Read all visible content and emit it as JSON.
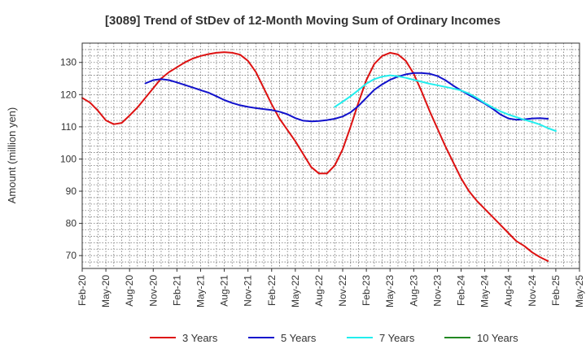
{
  "chart_data": {
    "type": "line",
    "title": "[3089]  Trend of StDev of 12-Month Moving Sum of Ordinary Incomes",
    "xlabel": "",
    "ylabel": "Amount (million yen)",
    "ylim": [
      66,
      136
    ],
    "yticks": [
      70,
      80,
      90,
      100,
      110,
      120,
      130
    ],
    "x_range": [
      0,
      60
    ],
    "x_ticks": [
      {
        "i": 0,
        "label": "Feb-20"
      },
      {
        "i": 3,
        "label": "May-20"
      },
      {
        "i": 6,
        "label": "Aug-20"
      },
      {
        "i": 9,
        "label": "Nov-20"
      },
      {
        "i": 12,
        "label": "Feb-21"
      },
      {
        "i": 15,
        "label": "May-21"
      },
      {
        "i": 18,
        "label": "Aug-21"
      },
      {
        "i": 21,
        "label": "Nov-21"
      },
      {
        "i": 24,
        "label": "Feb-22"
      },
      {
        "i": 27,
        "label": "May-22"
      },
      {
        "i": 30,
        "label": "Aug-22"
      },
      {
        "i": 33,
        "label": "Nov-22"
      },
      {
        "i": 36,
        "label": "Feb-23"
      },
      {
        "i": 39,
        "label": "May-23"
      },
      {
        "i": 42,
        "label": "Aug-23"
      },
      {
        "i": 45,
        "label": "Nov-23"
      },
      {
        "i": 48,
        "label": "Feb-24"
      },
      {
        "i": 51,
        "label": "May-24"
      },
      {
        "i": 54,
        "label": "Aug-24"
      },
      {
        "i": 57,
        "label": "Nov-24"
      },
      {
        "i": 60,
        "label": "Feb-25"
      },
      {
        "i": 63,
        "label": "May-25"
      }
    ],
    "grid": true,
    "legend_position": "bottom",
    "series": [
      {
        "name": "3 Years",
        "color": "#dd1111",
        "start": 0,
        "values": [
          119,
          117.5,
          115,
          112,
          110.8,
          111.2,
          113.5,
          116,
          119,
          122,
          125,
          127,
          128.5,
          130,
          131.2,
          132,
          132.6,
          133,
          133.2,
          133,
          132.4,
          130.5,
          127,
          122,
          117,
          112.5,
          109,
          105.5,
          101.5,
          97.5,
          95.5,
          95.5,
          98,
          103,
          110,
          117.5,
          124.5,
          129.5,
          132,
          133,
          132.5,
          130.5,
          126.5,
          121,
          115,
          109.5,
          104,
          99,
          94,
          90,
          87,
          84.5,
          82,
          79.5,
          77,
          74.5,
          73,
          71,
          69.5,
          68.3
        ]
      },
      {
        "name": "5 Years",
        "color": "#1111cc",
        "start": 8,
        "values": [
          123.5,
          124.5,
          124.8,
          124.5,
          123.8,
          123,
          122.2,
          121.4,
          120.6,
          119.5,
          118.3,
          117.4,
          116.7,
          116.2,
          115.8,
          115.5,
          115.2,
          114.7,
          113.9,
          112.7,
          111.9,
          111.7,
          111.8,
          112.1,
          112.5,
          113.2,
          114.5,
          116.5,
          119,
          121.5,
          123.2,
          124.6,
          125.6,
          126.3,
          126.7,
          126.7,
          126.5,
          125.8,
          124.5,
          122.8,
          121.3,
          119.9,
          118.6,
          117.2,
          115.6,
          113.8,
          112.6,
          112.2,
          112.3,
          112.6,
          112.7,
          112.5
        ]
      },
      {
        "name": "7 Years",
        "color": "#22eeee",
        "start": 32,
        "values": [
          116.2,
          117.8,
          119.5,
          121.4,
          123.4,
          124.8,
          125.6,
          126,
          125.7,
          125.2,
          124.6,
          124,
          123.4,
          122.9,
          122.4,
          121.9,
          121.3,
          120.3,
          119,
          117.4,
          116,
          114.8,
          113.8,
          113,
          112.2,
          111.5,
          110.7,
          109.6,
          108.7
        ]
      },
      {
        "name": "10 Years",
        "color": "#228822",
        "start": 0,
        "values": []
      }
    ]
  }
}
